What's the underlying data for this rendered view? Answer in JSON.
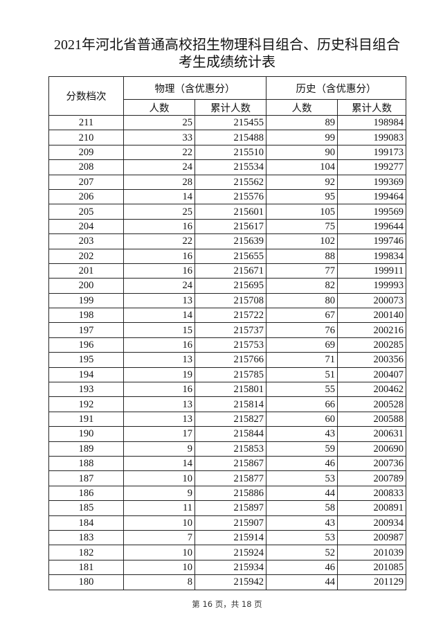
{
  "title_line1": "2021年河北省普通高校招生物理科目组合、历史科目组合",
  "title_line2": "考生成绩统计表",
  "headers": {
    "score": "分数档次",
    "physics": "物理（含优惠分）",
    "history": "历史（含优惠分）",
    "count": "人数",
    "cumulative": "累计人数"
  },
  "rows": [
    [
      "211",
      "25",
      "215455",
      "89",
      "198984"
    ],
    [
      "210",
      "33",
      "215488",
      "99",
      "199083"
    ],
    [
      "209",
      "22",
      "215510",
      "90",
      "199173"
    ],
    [
      "208",
      "24",
      "215534",
      "104",
      "199277"
    ],
    [
      "207",
      "28",
      "215562",
      "92",
      "199369"
    ],
    [
      "206",
      "14",
      "215576",
      "95",
      "199464"
    ],
    [
      "205",
      "25",
      "215601",
      "105",
      "199569"
    ],
    [
      "204",
      "16",
      "215617",
      "75",
      "199644"
    ],
    [
      "203",
      "22",
      "215639",
      "102",
      "199746"
    ],
    [
      "202",
      "16",
      "215655",
      "88",
      "199834"
    ],
    [
      "201",
      "16",
      "215671",
      "77",
      "199911"
    ],
    [
      "200",
      "24",
      "215695",
      "82",
      "199993"
    ],
    [
      "199",
      "13",
      "215708",
      "80",
      "200073"
    ],
    [
      "198",
      "14",
      "215722",
      "67",
      "200140"
    ],
    [
      "197",
      "15",
      "215737",
      "76",
      "200216"
    ],
    [
      "196",
      "16",
      "215753",
      "69",
      "200285"
    ],
    [
      "195",
      "13",
      "215766",
      "71",
      "200356"
    ],
    [
      "194",
      "19",
      "215785",
      "51",
      "200407"
    ],
    [
      "193",
      "16",
      "215801",
      "55",
      "200462"
    ],
    [
      "192",
      "13",
      "215814",
      "66",
      "200528"
    ],
    [
      "191",
      "13",
      "215827",
      "60",
      "200588"
    ],
    [
      "190",
      "17",
      "215844",
      "43",
      "200631"
    ],
    [
      "189",
      "9",
      "215853",
      "59",
      "200690"
    ],
    [
      "188",
      "14",
      "215867",
      "46",
      "200736"
    ],
    [
      "187",
      "10",
      "215877",
      "53",
      "200789"
    ],
    [
      "186",
      "9",
      "215886",
      "44",
      "200833"
    ],
    [
      "185",
      "11",
      "215897",
      "58",
      "200891"
    ],
    [
      "184",
      "10",
      "215907",
      "43",
      "200934"
    ],
    [
      "183",
      "7",
      "215914",
      "53",
      "200987"
    ],
    [
      "182",
      "10",
      "215924",
      "52",
      "201039"
    ],
    [
      "181",
      "10",
      "215934",
      "46",
      "201085"
    ],
    [
      "180",
      "8",
      "215942",
      "44",
      "201129"
    ]
  ],
  "footer": "第 16 页，共 18 页"
}
